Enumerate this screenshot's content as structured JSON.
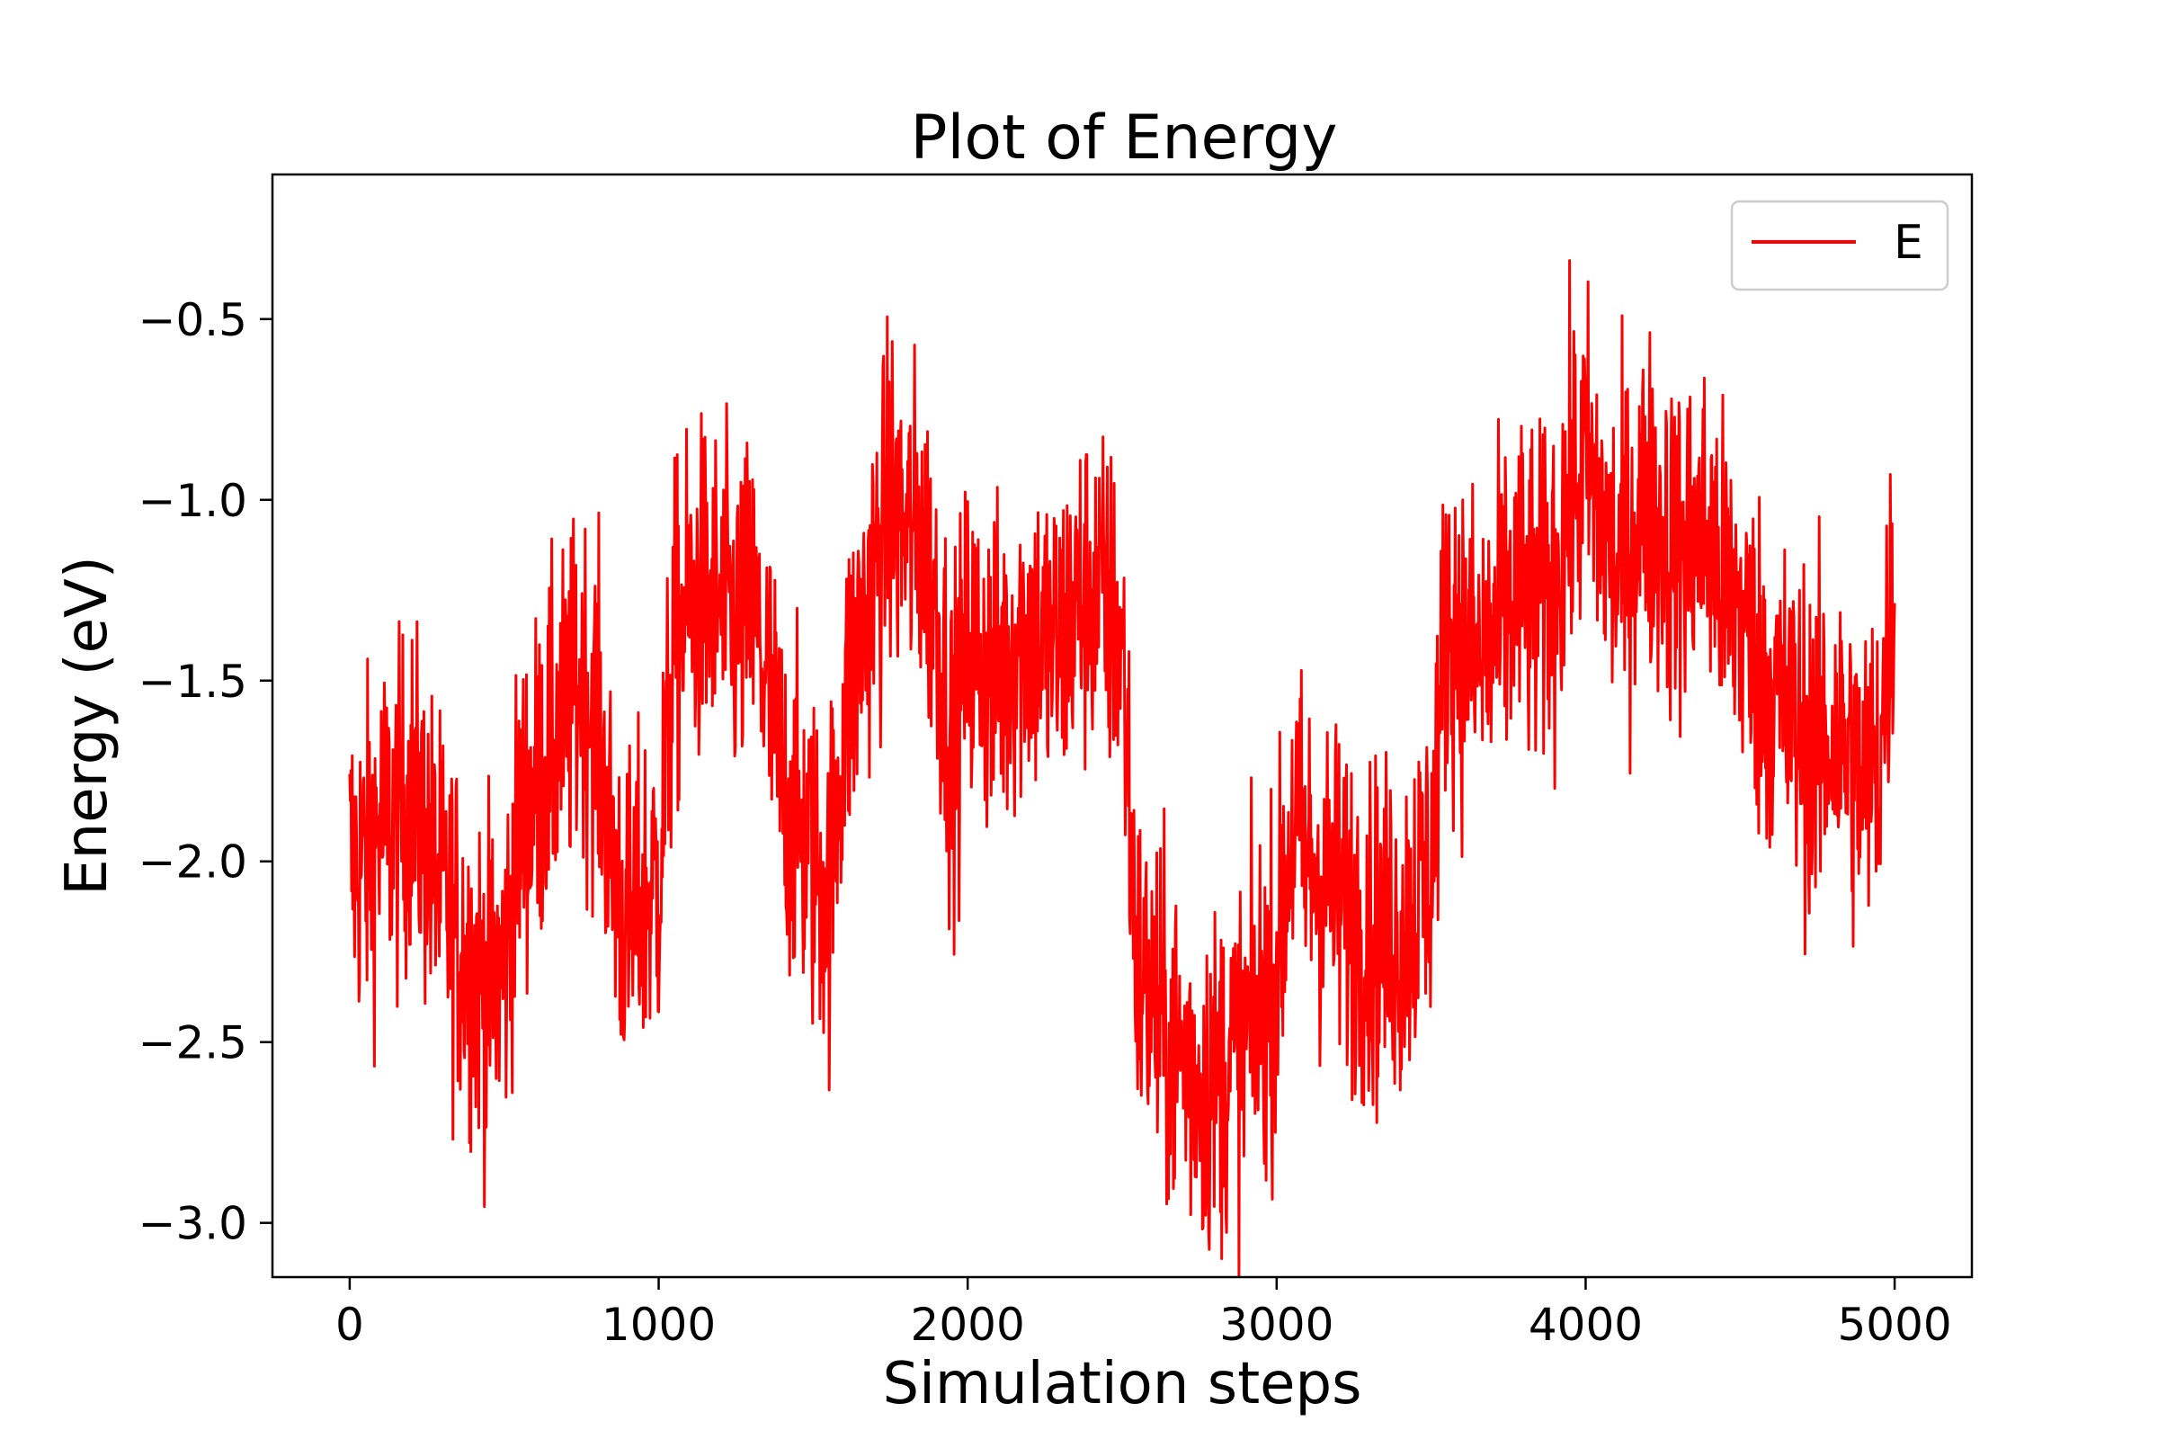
{
  "chart_data": {
    "type": "line",
    "title": "Plot of Energy",
    "xlabel": "Simulation steps",
    "ylabel": "Energy (eV)",
    "xlim": [
      -250,
      5250
    ],
    "ylim": [
      -3.15,
      -0.1
    ],
    "xticks": [
      0,
      1000,
      2000,
      3000,
      4000,
      5000
    ],
    "xtick_labels": [
      "0",
      "1000",
      "2000",
      "3000",
      "4000",
      "5000"
    ],
    "yticks": [
      -3.0,
      -2.5,
      -2.0,
      -1.5,
      -1.0,
      -0.5
    ],
    "ytick_labels": [
      "−3.0",
      "−2.5",
      "−2.0",
      "−1.5",
      "−1.0",
      "−0.5"
    ],
    "grid": false,
    "legend": {
      "position": "top-right",
      "entries": [
        "E"
      ]
    },
    "series": [
      {
        "name": "E",
        "color": "#ff0000",
        "noise": 0.28,
        "x": [
          0,
          50,
          100,
          150,
          200,
          250,
          300,
          350,
          400,
          450,
          500,
          550,
          600,
          650,
          700,
          750,
          800,
          850,
          900,
          950,
          1000,
          1050,
          1100,
          1150,
          1200,
          1250,
          1300,
          1350,
          1400,
          1450,
          1500,
          1550,
          1600,
          1650,
          1700,
          1750,
          1800,
          1850,
          1900,
          1950,
          2000,
          2050,
          2100,
          2150,
          2200,
          2250,
          2300,
          2350,
          2400,
          2450,
          2500,
          2550,
          2600,
          2650,
          2700,
          2750,
          2800,
          2850,
          2900,
          2950,
          3000,
          3050,
          3100,
          3150,
          3200,
          3250,
          3300,
          3350,
          3400,
          3450,
          3500,
          3550,
          3600,
          3650,
          3700,
          3750,
          3800,
          3850,
          3900,
          3950,
          4000,
          4050,
          4100,
          4150,
          4200,
          4250,
          4300,
          4350,
          4400,
          4450,
          4500,
          4550,
          4600,
          4650,
          4700,
          4750,
          4800,
          4850,
          4900,
          4950,
          5000
        ],
        "y": [
          -2.0,
          -2.0,
          -1.9,
          -1.9,
          -1.8,
          -1.95,
          -2.1,
          -2.2,
          -2.3,
          -2.35,
          -2.3,
          -1.9,
          -1.8,
          -1.7,
          -1.6,
          -1.5,
          -1.6,
          -2.0,
          -2.2,
          -2.1,
          -2.05,
          -1.4,
          -1.3,
          -1.25,
          -1.3,
          -1.35,
          -1.3,
          -1.5,
          -1.8,
          -1.9,
          -2.0,
          -2.1,
          -1.6,
          -1.4,
          -1.2,
          -1.0,
          -1.1,
          -1.1,
          -1.3,
          -1.7,
          -1.4,
          -1.45,
          -1.5,
          -1.4,
          -1.35,
          -1.4,
          -1.4,
          -1.3,
          -1.25,
          -1.3,
          -1.4,
          -2.3,
          -2.4,
          -2.5,
          -2.55,
          -2.6,
          -2.6,
          -2.55,
          -2.5,
          -2.4,
          -2.3,
          -1.9,
          -2.0,
          -2.05,
          -2.1,
          -2.15,
          -2.2,
          -2.2,
          -2.2,
          -2.1,
          -2.0,
          -1.3,
          -1.4,
          -1.45,
          -1.4,
          -1.3,
          -1.25,
          -1.3,
          -1.2,
          -1.0,
          -0.9,
          -1.05,
          -1.2,
          -1.1,
          -1.0,
          -1.1,
          -1.15,
          -1.1,
          -1.1,
          -1.25,
          -1.3,
          -1.45,
          -1.5,
          -1.6,
          -1.65,
          -1.7,
          -1.65,
          -1.7,
          -1.8,
          -1.7,
          -1.2
        ]
      }
    ]
  }
}
